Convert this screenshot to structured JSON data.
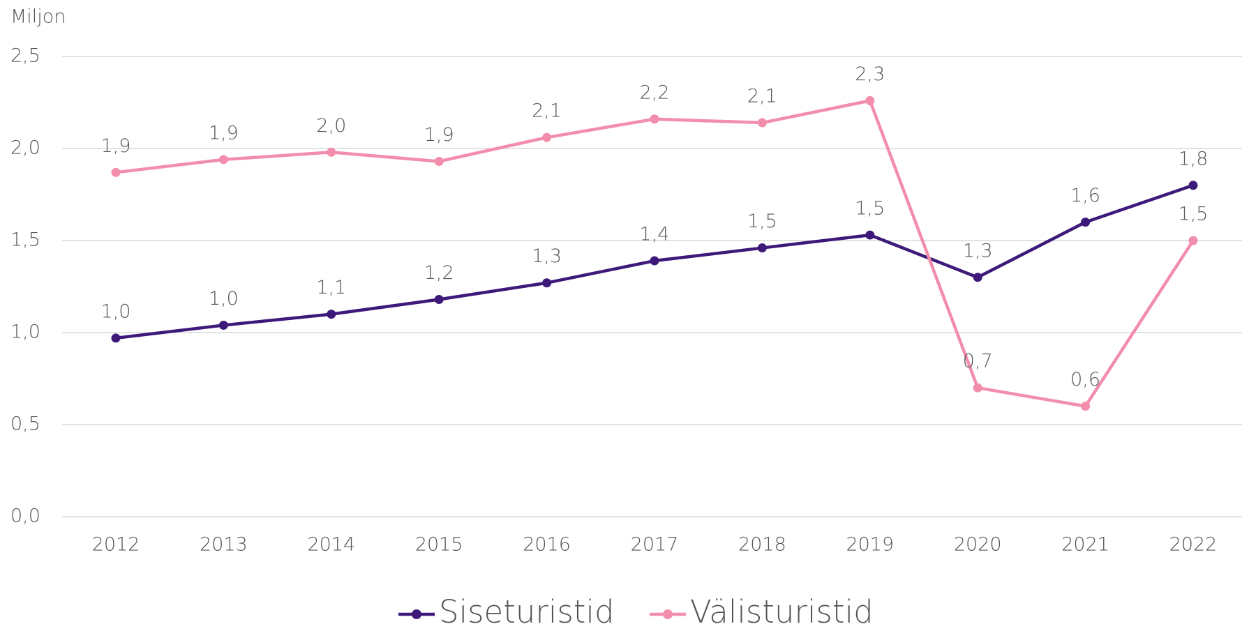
{
  "chart_data": {
    "type": "line",
    "y_axis_label": "Miljon",
    "categories": [
      "2012",
      "2013",
      "2014",
      "2015",
      "2016",
      "2017",
      "2018",
      "2019",
      "2020",
      "2021",
      "2022"
    ],
    "series": [
      {
        "name": "Siseturistid",
        "color": "#3d1a7a",
        "values": [
          0.97,
          1.04,
          1.1,
          1.18,
          1.27,
          1.39,
          1.46,
          1.53,
          1.3,
          1.6,
          1.8
        ],
        "value_labels": [
          "1,0",
          "1,0",
          "1,1",
          "1,2",
          "1,3",
          "1,4",
          "1,5",
          "1,5",
          "1,3",
          "1,6",
          "1,8"
        ]
      },
      {
        "name": "Välisturistid",
        "color": "#f28dab",
        "values": [
          1.87,
          1.94,
          1.98,
          1.93,
          2.06,
          2.16,
          2.14,
          2.26,
          0.7,
          0.6,
          1.5
        ],
        "value_labels": [
          "1,9",
          "1,9",
          "2,0",
          "1,9",
          "2,1",
          "2,2",
          "2,1",
          "2,3",
          "0,7",
          "0,6",
          "1,5"
        ]
      }
    ],
    "ylim": [
      0,
      2.5
    ],
    "yticks": [
      {
        "value": 0,
        "label": "0,0"
      },
      {
        "value": 0.5,
        "label": "0,5"
      },
      {
        "value": 1,
        "label": "1,0"
      },
      {
        "value": 1.5,
        "label": "1,5"
      },
      {
        "value": 2,
        "label": "2,0"
      },
      {
        "value": 2.5,
        "label": "2,5"
      }
    ],
    "grid": true,
    "legend": "bottom"
  }
}
